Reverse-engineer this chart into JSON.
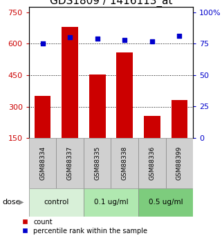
{
  "title": "GDS1809 / 1416113_at",
  "samples": [
    "GSM88334",
    "GSM88337",
    "GSM88335",
    "GSM88338",
    "GSM88336",
    "GSM88399"
  ],
  "counts": [
    350,
    680,
    455,
    560,
    255,
    330
  ],
  "percentiles": [
    75,
    80,
    79,
    78,
    77,
    81
  ],
  "groups": [
    {
      "label": "control",
      "samples": [
        "GSM88334",
        "GSM88337"
      ],
      "color": "#d8f0d8"
    },
    {
      "label": "0.1 ug/ml",
      "samples": [
        "GSM88335",
        "GSM88338"
      ],
      "color": "#b0e8b0"
    },
    {
      "label": "0.5 ug/ml",
      "samples": [
        "GSM88336",
        "GSM88399"
      ],
      "color": "#7dcc7d"
    }
  ],
  "bar_color": "#cc0000",
  "dot_color": "#0000cc",
  "left_yticks": [
    150,
    300,
    450,
    600,
    750
  ],
  "right_yticks": [
    0,
    25,
    50,
    75,
    100
  ],
  "left_ylim": [
    150,
    775
  ],
  "right_ylim": [
    0,
    104
  ],
  "grid_lines": [
    300,
    450,
    600
  ],
  "bar_width": 0.6,
  "sample_bg_color": "#d0d0d0",
  "sample_border_color": "#888888",
  "dose_label": "dose",
  "legend_count": "count",
  "legend_percentile": "percentile rank within the sample",
  "title_fontsize": 11,
  "axis_fontsize": 8,
  "tick_fontsize": 8
}
